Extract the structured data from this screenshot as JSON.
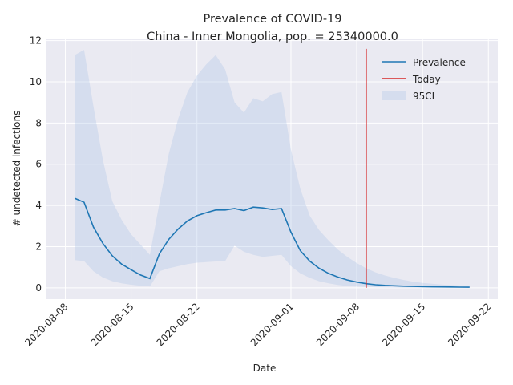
{
  "chart_data": {
    "type": "line",
    "title": "Prevalence of COVID-19",
    "subtitle": "China - Inner Mongolia, pop. = 25340000.0",
    "xlabel": "Date",
    "ylabel": "# undetected infections",
    "xlim": [
      "2020-08-06",
      "2020-09-23"
    ],
    "ylim": [
      -0.55,
      12.1
    ],
    "x_ticks": [
      "2020-08-08",
      "2020-08-15",
      "2020-08-22",
      "2020-09-01",
      "2020-09-08",
      "2020-09-15",
      "2020-09-22"
    ],
    "y_ticks": [
      0,
      2,
      4,
      6,
      8,
      10,
      12
    ],
    "grid": true,
    "legend_position": "top-right",
    "series": [
      {
        "name": "Prevalence",
        "color": "#1f77b4",
        "x": [
          "2020-08-09",
          "2020-08-10",
          "2020-08-11",
          "2020-08-12",
          "2020-08-13",
          "2020-08-14",
          "2020-08-15",
          "2020-08-16",
          "2020-08-17",
          "2020-08-18",
          "2020-08-19",
          "2020-08-20",
          "2020-08-21",
          "2020-08-22",
          "2020-08-23",
          "2020-08-24",
          "2020-08-25",
          "2020-08-26",
          "2020-08-27",
          "2020-08-28",
          "2020-08-29",
          "2020-08-30",
          "2020-08-31",
          "2020-09-01",
          "2020-09-02",
          "2020-09-03",
          "2020-09-04",
          "2020-09-05",
          "2020-09-06",
          "2020-09-07",
          "2020-09-08",
          "2020-09-09",
          "2020-09-10",
          "2020-09-11",
          "2020-09-12",
          "2020-09-13",
          "2020-09-14",
          "2020-09-15",
          "2020-09-16",
          "2020-09-17",
          "2020-09-18",
          "2020-09-19",
          "2020-09-20"
        ],
        "values": [
          4.35,
          4.15,
          2.95,
          2.15,
          1.55,
          1.15,
          0.88,
          0.62,
          0.45,
          1.65,
          2.35,
          2.85,
          3.25,
          3.5,
          3.65,
          3.78,
          3.78,
          3.85,
          3.75,
          3.92,
          3.88,
          3.8,
          3.85,
          2.7,
          1.8,
          1.3,
          0.95,
          0.7,
          0.52,
          0.38,
          0.28,
          0.2,
          0.15,
          0.12,
          0.1,
          0.08,
          0.07,
          0.06,
          0.05,
          0.045,
          0.04,
          0.035,
          0.03
        ]
      },
      {
        "name": "Today",
        "color": "#d62728",
        "x": [
          "2020-09-09",
          "2020-09-09"
        ],
        "values": [
          0,
          11.6
        ]
      }
    ],
    "band": {
      "name": "95CI",
      "color": "#aec7e8",
      "x": [
        "2020-08-09",
        "2020-08-10",
        "2020-08-11",
        "2020-08-12",
        "2020-08-13",
        "2020-08-14",
        "2020-08-15",
        "2020-08-16",
        "2020-08-17",
        "2020-08-18",
        "2020-08-19",
        "2020-08-20",
        "2020-08-21",
        "2020-08-22",
        "2020-08-23",
        "2020-08-24",
        "2020-08-25",
        "2020-08-26",
        "2020-08-27",
        "2020-08-28",
        "2020-08-29",
        "2020-08-30",
        "2020-08-31",
        "2020-09-01",
        "2020-09-02",
        "2020-09-03",
        "2020-09-04",
        "2020-09-05",
        "2020-09-06",
        "2020-09-07",
        "2020-09-08",
        "2020-09-09",
        "2020-09-10",
        "2020-09-11",
        "2020-09-12",
        "2020-09-13",
        "2020-09-14",
        "2020-09-15",
        "2020-09-16",
        "2020-09-17",
        "2020-09-18",
        "2020-09-19",
        "2020-09-20"
      ],
      "upper": [
        11.3,
        11.55,
        8.8,
        6.2,
        4.2,
        3.3,
        2.6,
        2.1,
        1.6,
        4.1,
        6.5,
        8.2,
        9.5,
        10.3,
        10.85,
        11.3,
        10.6,
        9.0,
        8.5,
        9.2,
        9.05,
        9.4,
        9.5,
        6.7,
        4.8,
        3.5,
        2.8,
        2.3,
        1.85,
        1.5,
        1.2,
        0.95,
        0.75,
        0.6,
        0.48,
        0.38,
        0.3,
        0.24,
        0.2,
        0.16,
        0.13,
        0.11,
        0.09
      ],
      "lower": [
        1.35,
        1.3,
        0.8,
        0.5,
        0.32,
        0.22,
        0.15,
        0.1,
        0.07,
        0.8,
        0.95,
        1.05,
        1.15,
        1.22,
        1.25,
        1.28,
        1.3,
        2.05,
        1.75,
        1.6,
        1.5,
        1.55,
        1.6,
        1.05,
        0.7,
        0.48,
        0.32,
        0.22,
        0.14,
        0.09,
        0.06,
        0.04,
        0.03,
        0.02,
        0.015,
        0.012,
        0.01,
        0.008,
        0.006,
        0.005,
        0.004,
        0.003,
        0.002
      ]
    }
  }
}
